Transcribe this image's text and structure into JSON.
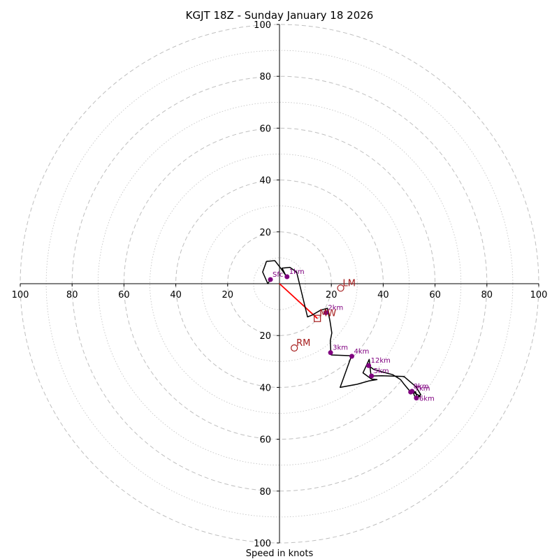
{
  "chart_data": {
    "type": "hodograph",
    "title": "KGJT 18Z - Sunday January 18 2026",
    "xlabel": "Speed in knots",
    "range_max": 100,
    "ring_step_major": 20,
    "ring_step_minor": 10,
    "tick_labels": {
      "x_left": [
        "100",
        "80",
        "60",
        "40",
        "20"
      ],
      "x_right": [
        "20",
        "40",
        "60",
        "80",
        "100"
      ],
      "y_top": [
        "100",
        "80",
        "60",
        "40",
        "20"
      ],
      "y_bottom": [
        "20",
        "40",
        "60",
        "80",
        "100"
      ]
    },
    "tick_values": {
      "x_left": [
        -100,
        -80,
        -60,
        -40,
        -20
      ],
      "x_right": [
        20,
        40,
        60,
        80,
        100
      ],
      "y_top": [
        100,
        80,
        60,
        40,
        20
      ],
      "y_bottom": [
        -20,
        -40,
        -60,
        -80,
        -100
      ]
    },
    "trace": {
      "points": [
        [
          -3.5,
          1.6
        ],
        [
          -4.5,
          0.0
        ],
        [
          -6.5,
          4.5
        ],
        [
          -5,
          8.6
        ],
        [
          -1.8,
          8.9
        ],
        [
          0.3,
          6.2
        ],
        [
          2.4,
          3.2
        ],
        [
          1,
          6.0
        ],
        [
          4,
          6.3
        ],
        [
          6.6,
          4.5
        ],
        [
          10.8,
          -12.8
        ],
        [
          12.6,
          -12.1
        ],
        [
          15.9,
          -10.2
        ],
        [
          18.5,
          -9.5
        ],
        [
          19.5,
          -14.5
        ],
        [
          20.2,
          -19.0
        ],
        [
          19.6,
          -22.0
        ],
        [
          19.8,
          -26.5
        ],
        [
          20,
          -27.5
        ],
        [
          27.8,
          -27.8
        ],
        [
          23.4,
          -40.0
        ],
        [
          30,
          -38.8
        ],
        [
          34.5,
          -37.5
        ],
        [
          37.6,
          -37.0
        ],
        [
          35.5,
          -36.8
        ],
        [
          32.2,
          -34.4
        ],
        [
          34.6,
          -29.2
        ],
        [
          35.3,
          -35.6
        ],
        [
          39.5,
          -35.5
        ],
        [
          48,
          -35.8
        ],
        [
          52.6,
          -39.7
        ],
        [
          54.5,
          -42.8
        ],
        [
          53,
          -43.8
        ],
        [
          52.5,
          -41.7
        ],
        [
          51,
          -41.5
        ],
        [
          54.3,
          -43.4
        ],
        [
          52.5,
          -44.3
        ],
        [
          51.7,
          -42.3
        ],
        [
          50.6,
          -41.8
        ],
        [
          48,
          -38.7
        ],
        [
          46.7,
          -37.0
        ],
        [
          43.7,
          -35.1
        ],
        [
          39.5,
          -34.0
        ],
        [
          36.2,
          -33.0
        ],
        [
          34.4,
          -31.6
        ]
      ],
      "color": "#000000"
    },
    "height_labels": [
      {
        "label": "Sfc",
        "u": -3.5,
        "v": 1.6
      },
      {
        "label": "1km",
        "u": 2.9,
        "v": 2.7
      },
      {
        "label": "2km",
        "u": 17.9,
        "v": -11.2
      },
      {
        "label": "3km",
        "u": 19.7,
        "v": -26.6
      },
      {
        "label": "4km",
        "u": 27.9,
        "v": -28.0
      },
      {
        "label": "5km",
        "u": 35.5,
        "v": -35.6
      },
      {
        "label": "6km",
        "u": 52.8,
        "v": -44.1
      },
      {
        "label": "7km",
        "u": 51.1,
        "v": -41.5
      },
      {
        "label": "8km",
        "u": 50.6,
        "v": -41.8
      },
      {
        "label": "12km",
        "u": 34.4,
        "v": -31.6
      }
    ],
    "storm_motion": {
      "bunkers_left": {
        "label": "LM",
        "u": 23.6,
        "v": -1.7
      },
      "bunkers_right": {
        "label": "RM",
        "u": 5.7,
        "v": -24.8
      },
      "mean_wind": {
        "label": "MW",
        "u": 14.6,
        "v": -13.4
      },
      "shear_vector_color": "#ff0000",
      "marker_color": "#a51c1c"
    },
    "colors": {
      "grid": "#bfbfbf",
      "axis": "#000000",
      "height_marker": "#800080",
      "background": "#ffffff"
    }
  }
}
